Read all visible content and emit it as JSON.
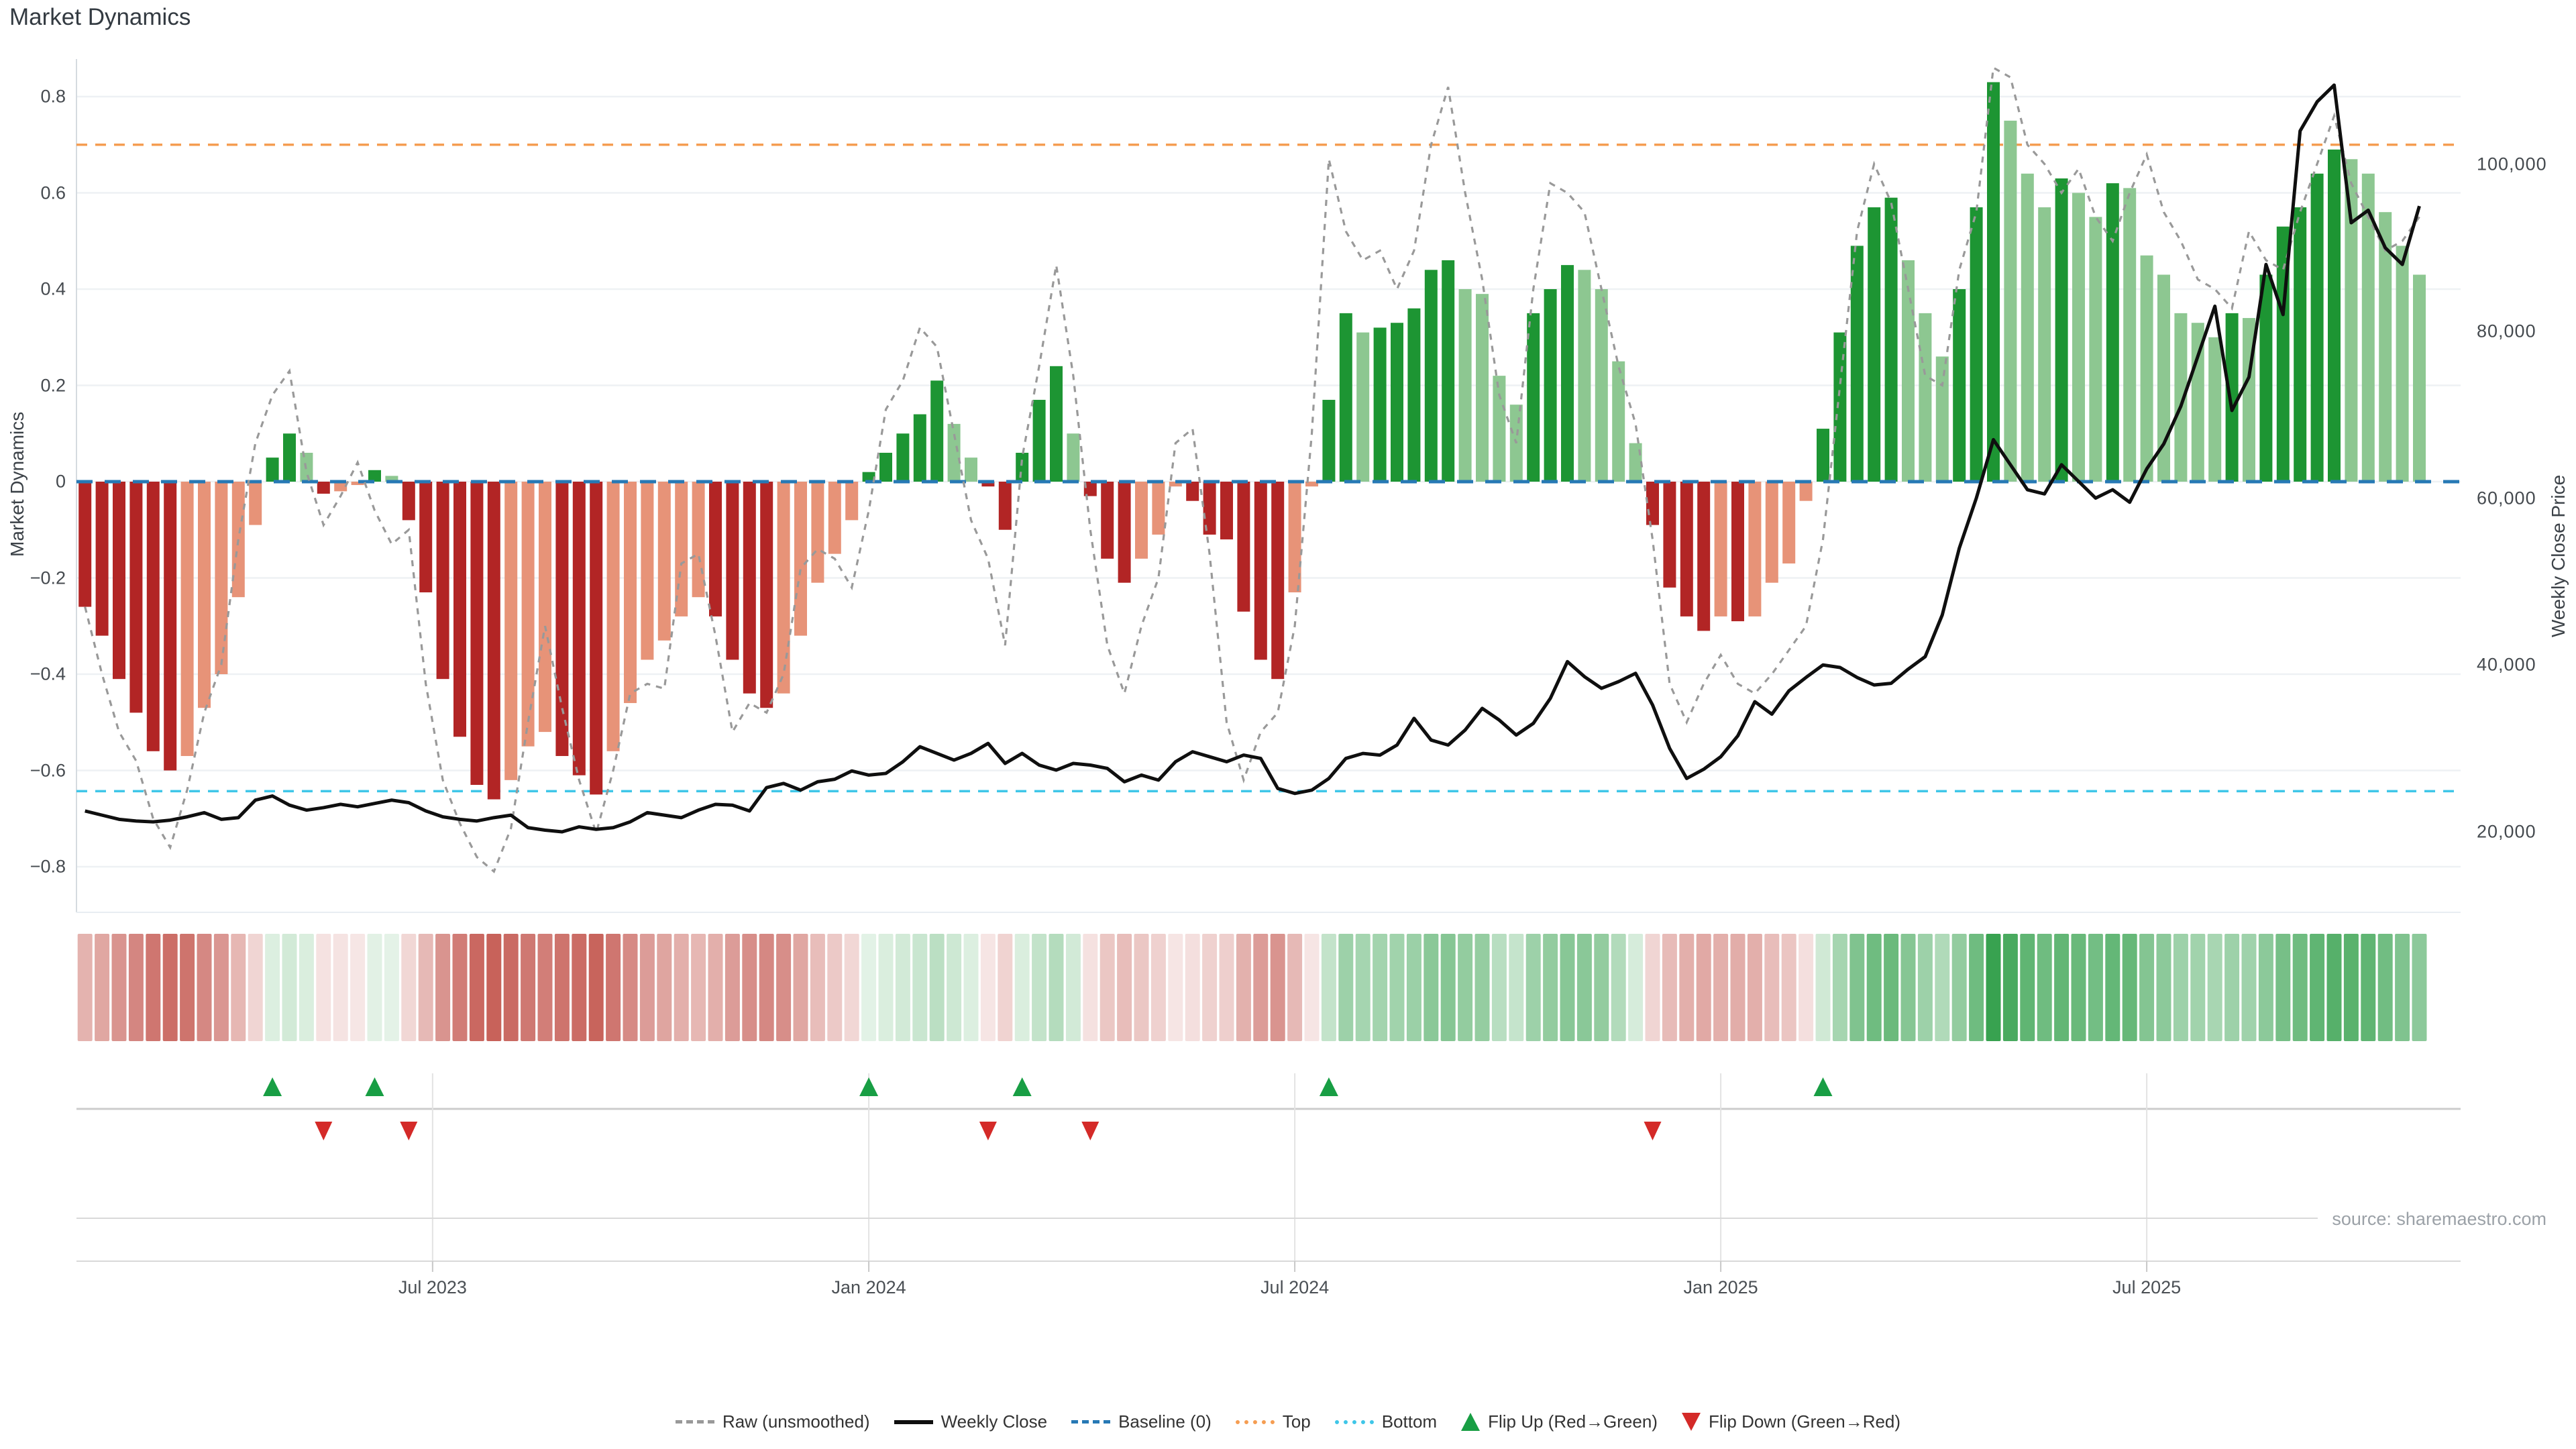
{
  "title": "Market Dynamics",
  "source_note": "source: sharemaestro.com",
  "left_axis": {
    "label": "Market Dynamics",
    "ticks": [
      {
        "label": "0.8",
        "value": 0.8
      },
      {
        "label": "0.6",
        "value": 0.6
      },
      {
        "label": "0.4",
        "value": 0.4
      },
      {
        "label": "0.2",
        "value": 0.2
      },
      {
        "label": "0",
        "value": 0.0
      },
      {
        "label": "−0.2",
        "value": -0.2
      },
      {
        "label": "−0.4",
        "value": -0.4
      },
      {
        "label": "−0.6",
        "value": -0.6
      },
      {
        "label": "−0.8",
        "value": -0.8
      }
    ]
  },
  "right_axis": {
    "label": "Weekly Close Price",
    "ticks": [
      {
        "label": "100,000",
        "value": 100000
      },
      {
        "label": "80,000",
        "value": 80000
      },
      {
        "label": "60,000",
        "value": 60000
      },
      {
        "label": "40,000",
        "value": 40000
      },
      {
        "label": "20,000",
        "value": 20000
      }
    ]
  },
  "x_axis": {
    "ticks": [
      {
        "label": "Jul 2023",
        "week": 20.4
      },
      {
        "label": "Jan 2024",
        "week": 46.0
      },
      {
        "label": "Jul 2024",
        "week": 71.0
      },
      {
        "label": "Jan 2025",
        "week": 96.0
      },
      {
        "label": "Jul 2025",
        "week": 121.0
      }
    ]
  },
  "legend": {
    "items": [
      {
        "label": "Raw (unsmoothed)",
        "marker": "dashed-line",
        "color": "#999999"
      },
      {
        "label": "Weekly Close",
        "marker": "solid-line",
        "color": "#0f0f0f"
      },
      {
        "label": "Baseline (0)",
        "marker": "dashed-line",
        "color": "#2779b5"
      },
      {
        "label": "Top",
        "marker": "dotted-line",
        "color": "#f59d52"
      },
      {
        "label": "Bottom",
        "marker": "dotted-line",
        "color": "#3fc6e8"
      },
      {
        "label": "Flip Up (Red→Green)",
        "marker": "triangle-up",
        "color": "#189e44"
      },
      {
        "label": "Flip Down (Green→Red)",
        "marker": "triangle-down",
        "color": "#d42a28"
      }
    ]
  },
  "chart_data": {
    "type": "combo",
    "n_weeks": 138,
    "title": "Market Dynamics",
    "ylabel_left": "Market Dynamics",
    "ylabel_right": "Weekly Close Price",
    "ylim_left": [
      -0.88,
      0.88
    ],
    "right_axis_ticks": [
      20000,
      40000,
      60000,
      80000,
      100000
    ],
    "reference_lines": {
      "baseline": 0.0,
      "top": 0.7,
      "bottom": -0.643
    },
    "series": [
      {
        "name": "Market Dynamics (smoothed bars)",
        "type": "bar",
        "axis": "left",
        "shading_rule": "dark when |value| intensifies vs previous week, light when it weakens",
        "values": [
          -0.26,
          -0.32,
          -0.41,
          -0.48,
          -0.56,
          -0.6,
          -0.57,
          -0.47,
          -0.4,
          -0.24,
          -0.09,
          0.05,
          0.1,
          0.06,
          -0.025,
          -0.02,
          -0.007,
          0.024,
          0.012,
          -0.08,
          -0.23,
          -0.41,
          -0.53,
          -0.63,
          -0.66,
          -0.62,
          -0.55,
          -0.52,
          -0.57,
          -0.61,
          -0.65,
          -0.56,
          -0.46,
          -0.37,
          -0.33,
          -0.28,
          -0.24,
          -0.28,
          -0.37,
          -0.44,
          -0.47,
          -0.44,
          -0.32,
          -0.21,
          -0.15,
          -0.08,
          0.02,
          0.06,
          0.1,
          0.14,
          0.21,
          0.12,
          0.05,
          -0.01,
          -0.1,
          0.06,
          0.17,
          0.24,
          0.1,
          -0.03,
          -0.16,
          -0.21,
          -0.16,
          -0.11,
          -0.01,
          -0.04,
          -0.11,
          -0.12,
          -0.27,
          -0.37,
          -0.41,
          -0.23,
          -0.01,
          0.17,
          0.35,
          0.31,
          0.32,
          0.33,
          0.36,
          0.44,
          0.46,
          0.4,
          0.39,
          0.22,
          0.16,
          0.35,
          0.4,
          0.45,
          0.44,
          0.4,
          0.25,
          0.08,
          -0.09,
          -0.22,
          -0.28,
          -0.31,
          -0.28,
          -0.29,
          -0.28,
          -0.21,
          -0.17,
          -0.04,
          0.11,
          0.31,
          0.49,
          0.57,
          0.59,
          0.46,
          0.35,
          0.26,
          0.4,
          0.57,
          0.83,
          0.75,
          0.64,
          0.57,
          0.63,
          0.6,
          0.55,
          0.62,
          0.61,
          0.47,
          0.43,
          0.35,
          0.33,
          0.3,
          0.35,
          0.34,
          0.43,
          0.53,
          0.57,
          0.64,
          0.69,
          0.67,
          0.64,
          0.56,
          0.49,
          0.43
        ]
      },
      {
        "name": "Raw (unsmoothed)",
        "type": "line",
        "style": "dashed",
        "axis": "left",
        "values": [
          -0.26,
          -0.4,
          -0.52,
          -0.58,
          -0.7,
          -0.76,
          -0.64,
          -0.48,
          -0.38,
          -0.12,
          0.08,
          0.18,
          0.23,
          0.02,
          -0.09,
          -0.03,
          0.04,
          -0.06,
          -0.13,
          -0.1,
          -0.42,
          -0.62,
          -0.71,
          -0.78,
          -0.81,
          -0.72,
          -0.5,
          -0.3,
          -0.47,
          -0.62,
          -0.73,
          -0.6,
          -0.44,
          -0.42,
          -0.43,
          -0.17,
          -0.15,
          -0.32,
          -0.52,
          -0.46,
          -0.48,
          -0.4,
          -0.18,
          -0.14,
          -0.16,
          -0.22,
          -0.06,
          0.15,
          0.21,
          0.32,
          0.28,
          0.1,
          -0.08,
          -0.16,
          -0.34,
          0.05,
          0.24,
          0.45,
          0.22,
          -0.1,
          -0.34,
          -0.44,
          -0.3,
          -0.2,
          0.08,
          0.11,
          -0.15,
          -0.5,
          -0.62,
          -0.52,
          -0.48,
          -0.3,
          0.1,
          0.67,
          0.52,
          0.46,
          0.48,
          0.4,
          0.48,
          0.7,
          0.82,
          0.6,
          0.42,
          0.18,
          0.08,
          0.4,
          0.62,
          0.6,
          0.56,
          0.4,
          0.24,
          0.12,
          -0.12,
          -0.42,
          -0.5,
          -0.42,
          -0.36,
          -0.42,
          -0.44,
          -0.4,
          -0.35,
          -0.3,
          -0.12,
          0.2,
          0.52,
          0.66,
          0.58,
          0.4,
          0.22,
          0.2,
          0.44,
          0.56,
          0.86,
          0.84,
          0.7,
          0.66,
          0.6,
          0.65,
          0.55,
          0.5,
          0.6,
          0.68,
          0.56,
          0.5,
          0.42,
          0.4,
          0.36,
          0.52,
          0.46,
          0.44,
          0.56,
          0.66,
          0.76,
          0.62,
          0.55,
          0.48,
          0.5,
          0.55
        ]
      },
      {
        "name": "Weekly Close",
        "type": "line",
        "style": "solid",
        "axis": "right",
        "values": [
          22500,
          22000,
          21500,
          21300,
          21200,
          21400,
          21800,
          22300,
          21500,
          21700,
          23800,
          24300,
          23200,
          22600,
          22900,
          23300,
          23000,
          23400,
          23800,
          23500,
          22500,
          21800,
          21500,
          21300,
          21700,
          22000,
          20500,
          20200,
          20000,
          20600,
          20300,
          20500,
          21200,
          22300,
          22000,
          21700,
          22600,
          23300,
          23200,
          22500,
          25300,
          25800,
          25000,
          26000,
          26300,
          27300,
          26800,
          27000,
          28400,
          30200,
          29400,
          28600,
          29400,
          30600,
          28200,
          29400,
          28000,
          27400,
          28200,
          28000,
          27600,
          26000,
          26800,
          26200,
          28400,
          29600,
          29000,
          28400,
          29200,
          28800,
          25200,
          24600,
          25000,
          26400,
          28800,
          29400,
          29200,
          30400,
          33600,
          31000,
          30400,
          32200,
          34800,
          33400,
          31600,
          33000,
          36000,
          40400,
          38600,
          37200,
          38000,
          39000,
          35200,
          30000,
          26400,
          27500,
          29000,
          31500,
          35600,
          34100,
          36900,
          38500,
          40000,
          39700,
          38500,
          37600,
          37800,
          39500,
          41000,
          46000,
          54000,
          60000,
          67000,
          64000,
          61000,
          60500,
          64000,
          62000,
          60000,
          61000,
          59500,
          63500,
          66500,
          71000,
          77000,
          83000,
          70500,
          74500,
          88000,
          82000,
          104000,
          107500,
          109500,
          93000,
          94500,
          90000,
          88000,
          95000
        ]
      }
    ],
    "flip_up_weeks": [
      11,
      17,
      46,
      55,
      73,
      102
    ],
    "flip_down_weeks": [
      14,
      19,
      53,
      59,
      92
    ],
    "heatmap_strip": {
      "maps": "bar values, color intensity proportional to |value|"
    },
    "colors": {
      "bar_dark_green": "#1d9533",
      "bar_light_green": "#8dc791",
      "bar_dark_red": "#b22525",
      "bar_light_red": "#e79378",
      "baseline": "#2779b5",
      "top_line": "#f59d52",
      "bottom_line": "#3fc6e8",
      "raw_line": "#999999",
      "price_line": "#0f0f0f",
      "flip_up": "#189e44",
      "flip_down": "#d42a28",
      "heat_green": "#34a04c",
      "heat_red": "#ba3b32",
      "gridline": "#eef1f4",
      "panel_line": "#cccccc",
      "sub_gridline": "#d9d9d9"
    }
  }
}
